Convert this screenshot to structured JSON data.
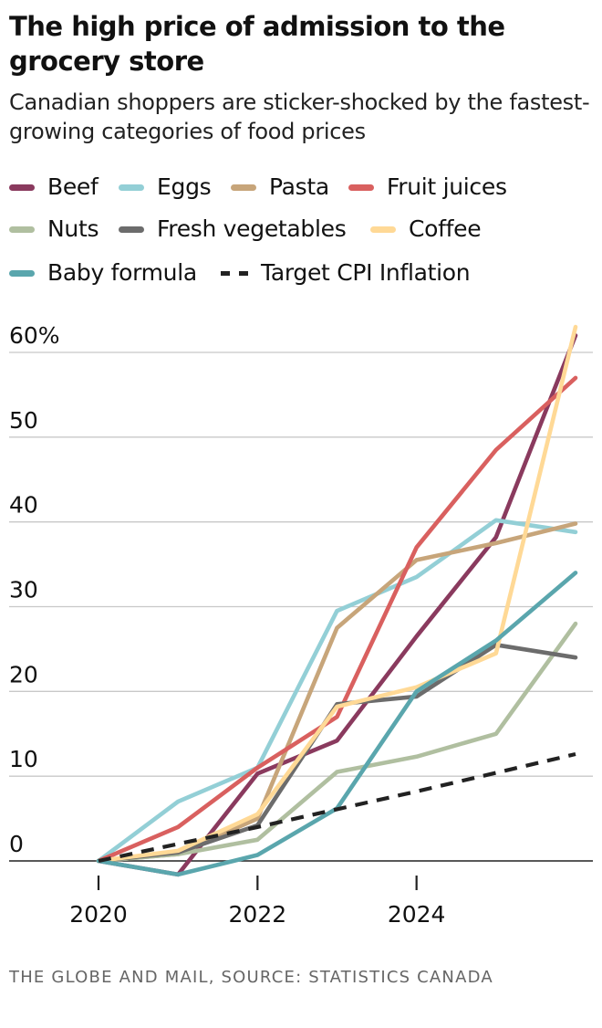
{
  "title": "The high price of admission to the grocery store",
  "subtitle": "Canadian shoppers are sticker-shocked by the fastest-growing categories of food prices",
  "source": "THE GLOBE AND MAIL, SOURCE: STATISTICS CANADA",
  "chart_data": {
    "type": "line",
    "x": [
      2020,
      2021,
      2022,
      2023,
      2024,
      2025,
      2026
    ],
    "xticks": [
      2020,
      2022,
      2024
    ],
    "xtick_labels": [
      "2020",
      "2022",
      "2024"
    ],
    "yticks": [
      0,
      10,
      20,
      30,
      40,
      50,
      60
    ],
    "ytick_labels": [
      "0",
      "10",
      "20",
      "30",
      "40",
      "50",
      "60%"
    ],
    "ylim": [
      0,
      60
    ],
    "grid": "horizontal",
    "legend_position": "top",
    "series": [
      {
        "name": "Beef",
        "color": "#8a3a5e",
        "dashed": false,
        "values": [
          0,
          -1.6,
          10.3,
          14.2,
          26.5,
          38.2,
          62.0
        ]
      },
      {
        "name": "Eggs",
        "color": "#93cfd6",
        "dashed": false,
        "values": [
          0,
          7.0,
          11.0,
          29.5,
          33.5,
          40.2,
          38.8
        ]
      },
      {
        "name": "Pasta",
        "color": "#c7a57a",
        "dashed": false,
        "values": [
          0,
          0.8,
          5.0,
          27.5,
          35.5,
          37.5,
          39.8
        ]
      },
      {
        "name": "Fruit juices",
        "color": "#d9605f",
        "dashed": false,
        "values": [
          0,
          4.0,
          11.0,
          17.0,
          37.0,
          48.5,
          57.0
        ]
      },
      {
        "name": "Nuts",
        "color": "#b0bfa0",
        "dashed": false,
        "values": [
          0,
          0.8,
          2.5,
          10.5,
          12.3,
          15.0,
          28.0
        ]
      },
      {
        "name": "Fresh vegetables",
        "color": "#6c6c6c",
        "dashed": false,
        "values": [
          0,
          1.0,
          4.2,
          18.5,
          19.4,
          25.5,
          24.0
        ]
      },
      {
        "name": "Coffee",
        "color": "#ffd996",
        "dashed": false,
        "values": [
          0,
          1.2,
          5.5,
          18.2,
          20.5,
          24.5,
          63.0
        ]
      },
      {
        "name": "Baby formula",
        "color": "#5aa6ad",
        "dashed": false,
        "values": [
          0,
          -1.6,
          0.7,
          6.2,
          20.0,
          26.0,
          34.0
        ]
      },
      {
        "name": "Target CPI Inflation",
        "color": "#222222",
        "dashed": true,
        "values": [
          0,
          2.0,
          4.0,
          6.1,
          8.2,
          10.4,
          12.6
        ]
      }
    ]
  }
}
